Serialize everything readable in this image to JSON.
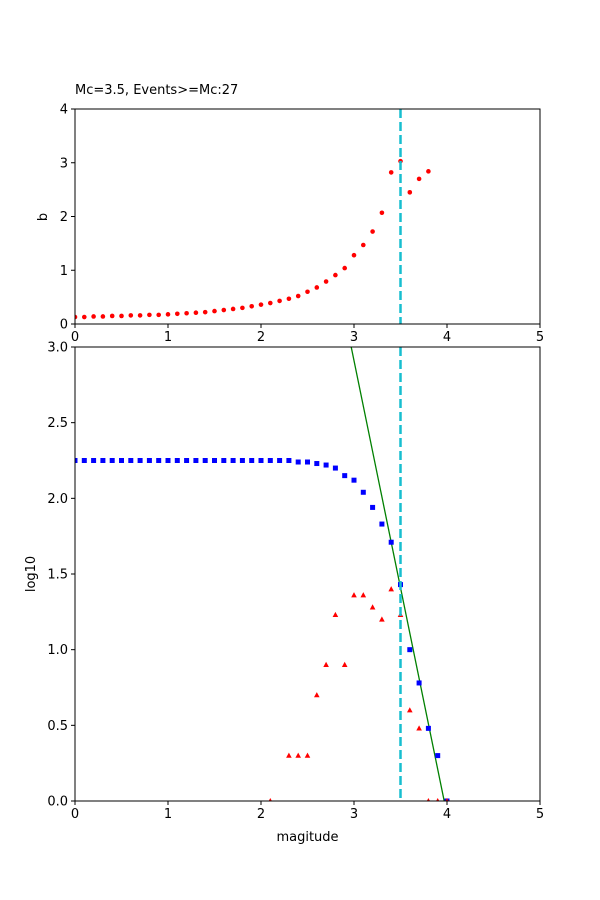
{
  "chart_data": [
    {
      "type": "scatter",
      "title": "Mc=3.5, Events>=Mc:27",
      "xlabel": "",
      "ylabel": "b",
      "xlim": [
        0,
        5
      ],
      "ylim": [
        0,
        4
      ],
      "xticks": [
        0,
        1,
        2,
        3,
        4,
        5
      ],
      "yticks": [
        0,
        1,
        2,
        3,
        4
      ],
      "grid": false,
      "vline": {
        "x": 3.5,
        "color": "#17becf",
        "style": "dashed"
      },
      "series": [
        {
          "color": "#ff0000",
          "marker": "circle",
          "x": [
            0.0,
            0.1,
            0.2,
            0.3,
            0.4,
            0.5,
            0.6,
            0.7,
            0.8,
            0.9,
            1.0,
            1.1,
            1.2,
            1.3,
            1.4,
            1.5,
            1.6,
            1.7,
            1.8,
            1.9,
            2.0,
            2.1,
            2.2,
            2.3,
            2.4,
            2.5,
            2.6,
            2.7,
            2.8,
            2.9,
            3.0,
            3.1,
            3.2,
            3.3,
            3.4,
            3.5,
            3.6,
            3.7,
            3.8
          ],
          "y": [
            0.13,
            0.13,
            0.14,
            0.14,
            0.15,
            0.15,
            0.16,
            0.16,
            0.17,
            0.17,
            0.18,
            0.19,
            0.2,
            0.21,
            0.22,
            0.24,
            0.26,
            0.28,
            0.3,
            0.33,
            0.36,
            0.39,
            0.43,
            0.47,
            0.52,
            0.6,
            0.68,
            0.79,
            0.91,
            1.04,
            1.28,
            1.47,
            1.72,
            2.07,
            2.82,
            3.03,
            2.45,
            2.7,
            2.84
          ]
        }
      ]
    },
    {
      "type": "scatter",
      "title": "",
      "xlabel": "magitude",
      "ylabel": "log10",
      "xlim": [
        0,
        5
      ],
      "ylim": [
        0,
        3
      ],
      "xticks": [
        0,
        1,
        2,
        3,
        4,
        5
      ],
      "yticks": [
        "0.0",
        "0.5",
        "1.0",
        "1.5",
        "2.0",
        "2.5",
        "3.0"
      ],
      "grid": false,
      "vline": {
        "x": 3.5,
        "color": "#17becf",
        "style": "dashed"
      },
      "fit_line": {
        "color": "#008000",
        "x": [
          2.97,
          3.97
        ],
        "y": [
          3.0,
          0.0
        ]
      },
      "series": [
        {
          "color": "#0000ff",
          "marker": "square",
          "x": [
            0.0,
            0.1,
            0.2,
            0.3,
            0.4,
            0.5,
            0.6,
            0.7,
            0.8,
            0.9,
            1.0,
            1.1,
            1.2,
            1.3,
            1.4,
            1.5,
            1.6,
            1.7,
            1.8,
            1.9,
            2.0,
            2.1,
            2.2,
            2.3,
            2.4,
            2.5,
            2.6,
            2.7,
            2.8,
            2.9,
            3.0,
            3.1,
            3.2,
            3.3,
            3.4,
            3.5,
            3.6,
            3.7,
            3.8,
            3.9,
            4.0
          ],
          "y": [
            2.25,
            2.25,
            2.25,
            2.25,
            2.25,
            2.25,
            2.25,
            2.25,
            2.25,
            2.25,
            2.25,
            2.25,
            2.25,
            2.25,
            2.25,
            2.25,
            2.25,
            2.25,
            2.25,
            2.25,
            2.25,
            2.25,
            2.25,
            2.25,
            2.24,
            2.24,
            2.23,
            2.22,
            2.2,
            2.15,
            2.12,
            2.04,
            1.94,
            1.83,
            1.71,
            1.43,
            1.0,
            0.78,
            0.48,
            0.3,
            0.0
          ]
        },
        {
          "color": "#ff0000",
          "marker": "triangle",
          "x": [
            2.1,
            2.3,
            2.4,
            2.5,
            2.6,
            2.7,
            2.8,
            2.9,
            3.0,
            3.1,
            3.2,
            3.3,
            3.4,
            3.5,
            3.6,
            3.7,
            3.8,
            3.9,
            4.0
          ],
          "y": [
            0.0,
            0.3,
            0.3,
            0.3,
            0.7,
            0.9,
            1.23,
            0.9,
            1.36,
            1.36,
            1.28,
            1.2,
            1.4,
            1.23,
            0.6,
            0.48,
            0.0,
            0.0,
            0.0
          ]
        }
      ]
    }
  ]
}
